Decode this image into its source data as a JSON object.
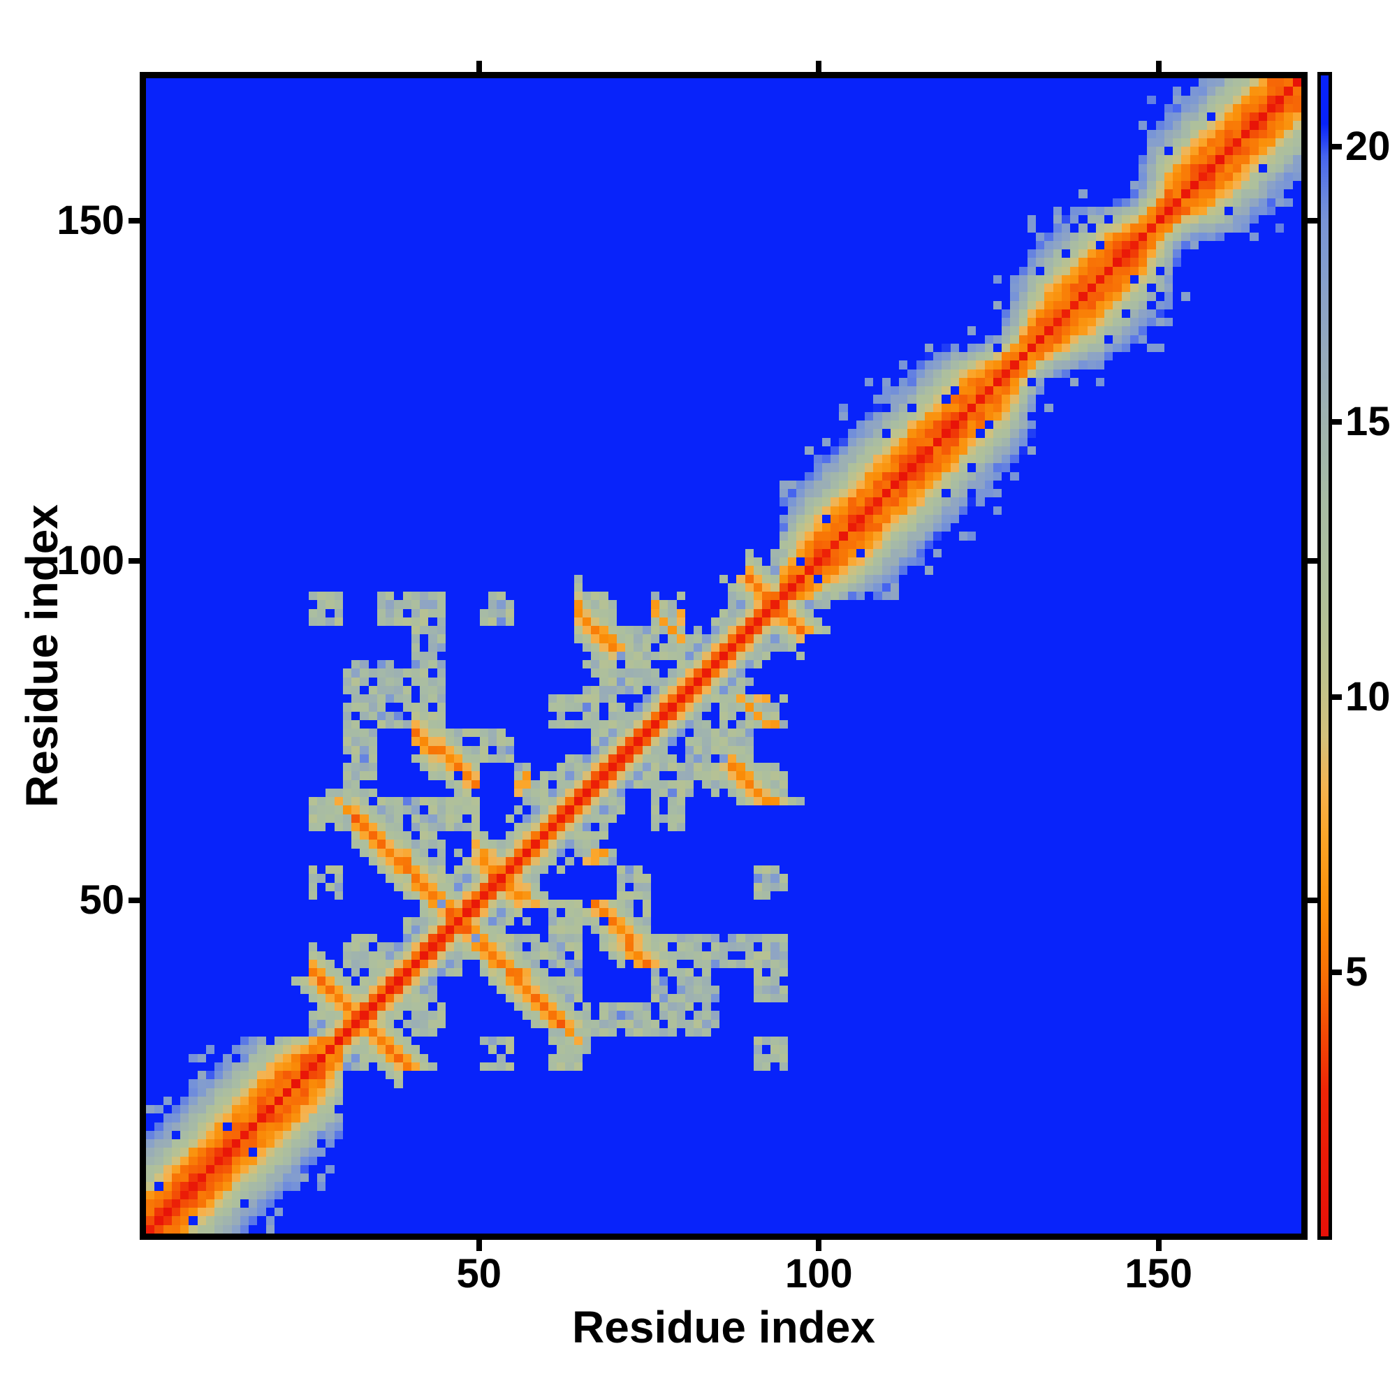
{
  "chart_data": {
    "type": "heatmap",
    "title": "",
    "xlabel": "Residue index",
    "ylabel": "Residue index",
    "x_ticks": [
      50,
      100,
      150
    ],
    "y_ticks": [
      50,
      100,
      150
    ],
    "axis_range": [
      1,
      171
    ],
    "n_cells": 135,
    "grid": false,
    "legend": "none",
    "colorbar": {
      "position": "right",
      "ticks": [
        5,
        10,
        15,
        20
      ],
      "range": [
        0.2,
        21.3
      ]
    },
    "colormap_stops": [
      [
        0.0,
        "#e60f08"
      ],
      [
        2.8,
        "#ee2407"
      ],
      [
        4.0,
        "#f34e06"
      ],
      [
        5.0,
        "#f87206"
      ],
      [
        6.2,
        "#fa8e08"
      ],
      [
        7.4,
        "#fba426"
      ],
      [
        8.3,
        "#f7b14d"
      ],
      [
        9.3,
        "#d2c17c"
      ],
      [
        10.5,
        "#bcc28e"
      ],
      [
        12.0,
        "#afc09b"
      ],
      [
        13.5,
        "#a8bca4"
      ],
      [
        15.0,
        "#9fb3af"
      ],
      [
        16.3,
        "#95a9bd"
      ],
      [
        17.5,
        "#87a0cb"
      ],
      [
        18.8,
        "#7693d8"
      ],
      [
        19.8,
        "#4a68ee"
      ],
      [
        20.4,
        "#0823fa"
      ],
      [
        30.0,
        "#0823fa"
      ]
    ],
    "background_value": 30,
    "structure": {
      "seed": 20,
      "helix_segments": [
        {
          "type": "helix",
          "start": 1,
          "end": 29.5
        },
        {
          "type": "helix",
          "start": 95,
          "end": 171
        }
      ],
      "helix_distance_profile": [
        1.5,
        3.9,
        5.2,
        5.0,
        5.8,
        7.2,
        8.8,
        10.4,
        12.0,
        13.3,
        14.6,
        15.9,
        17.2,
        18.4,
        19.6
      ],
      "loop_distance_per_residue": 3.6,
      "helix_pinches": [
        {
          "center": 28,
          "amount": 0.5,
          "sigma": 2.0
        },
        {
          "center": 97,
          "amount": 0.55,
          "sigma": 2.5
        },
        {
          "center": 130,
          "amount": 0.85,
          "sigma": 3.5
        },
        {
          "center": 150,
          "amount": 0.8,
          "sigma": 3.0
        }
      ],
      "antiparallel_contacts": [
        {
          "i": [
            26,
            39
          ],
          "cross": 32.5,
          "d": 5.3
        },
        {
          "i": [
            32,
            46
          ],
          "cross": 47.0,
          "d": 5.0
        },
        {
          "i": [
            41,
            49
          ],
          "cross": 58.0,
          "d": 5.6
        },
        {
          "i": [
            50,
            57
          ],
          "cross": 53.5,
          "d": 5.8
        },
        {
          "i": [
            64,
            70
          ],
          "cross": 78.5,
          "d": 6.2
        },
        {
          "i": [
            90,
            97
          ],
          "cross": 93.5,
          "d": 5.6
        }
      ],
      "parallel_contacts": [
        {
          "span": [
            153,
            160
          ],
          "offset": 3,
          "d": 5.8
        }
      ],
      "contact_spots": [
        [
          70,
          88
        ],
        [
          79,
          90
        ],
        [
          30,
          63
        ]
      ],
      "domain_mesh": {
        "range": [
          26,
          96
        ],
        "element_size": 5,
        "contact_distance": 12.5,
        "fill_fraction": 0.42,
        "hole_fraction": 0.15
      }
    }
  },
  "colors": {
    "page_background": "#ffffff",
    "frame": "#000000",
    "text": "#000000",
    "far_blue": "#0823fa"
  }
}
